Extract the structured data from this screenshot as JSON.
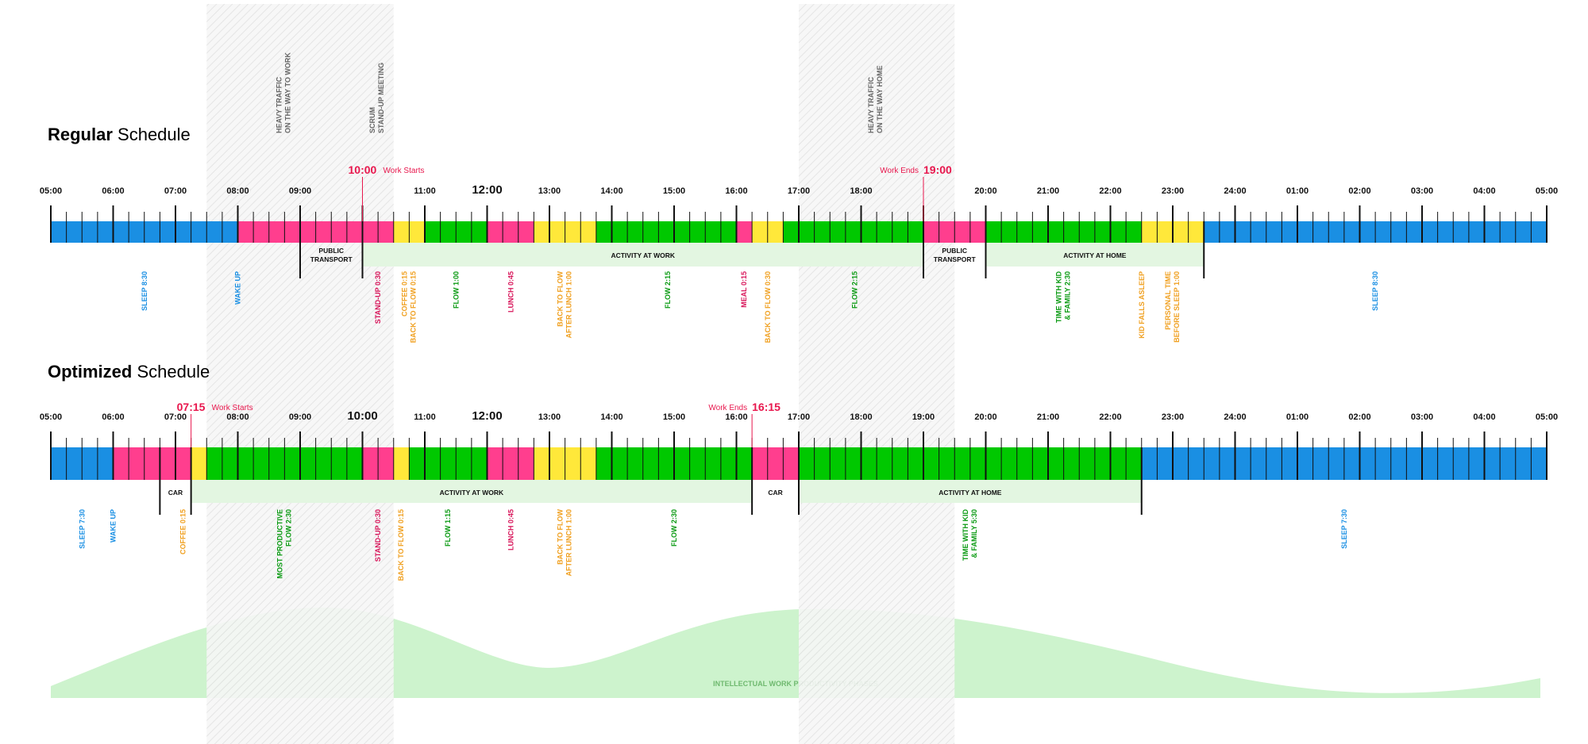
{
  "colors": {
    "sleep": "#1a8fe3",
    "routine": "#ff3e8e",
    "work": "#00c800",
    "transition": "#ffe83a",
    "activity_band": "#e3f6e1",
    "wave": "#cdf3cd",
    "accent_red": "#e8174d",
    "label_green": "#0a9a12",
    "label_orange": "#f0a020",
    "label_blue": "#1a8fe3",
    "label_red": "#d8155a"
  },
  "zones": [
    {
      "label_line1": "HEAVY TRAFFIC",
      "label_line2": "ON THE WAY TO WORK",
      "start": 7.5,
      "end": 10.0
    },
    {
      "label_line1": "SCRUM",
      "label_line2": "STAND-UP MEETING",
      "start": 10.0,
      "end": 10.5
    },
    {
      "label_line1": "HEAVY TRAFFIC",
      "label_line2": "ON THE WAY HOME",
      "start": 17.0,
      "end": 19.5
    }
  ],
  "regular": {
    "title_bold": "Regular",
    "title_rest": " Schedule",
    "hour_labels": [
      "05:00",
      "06:00",
      "07:00",
      "08:00",
      "09:00",
      "10:00",
      "11:00",
      "12:00",
      "13:00",
      "14:00",
      "15:00",
      "16:00",
      "17:00",
      "18:00",
      "19:00",
      "20:00",
      "21:00",
      "22:00",
      "23:00",
      "24:00",
      "01:00",
      "02:00",
      "03:00",
      "04:00",
      "05:00"
    ],
    "big_hours": [
      7
    ],
    "hidden_hours": [
      5,
      14
    ],
    "start_marker": {
      "time": "10:00",
      "text": "Work Starts",
      "at": 10.0
    },
    "end_marker": {
      "time": "19:00",
      "text": "Work Ends",
      "at": 19.0
    },
    "segments": [
      {
        "start": 5.0,
        "end": 8.0,
        "kind": "sleep"
      },
      {
        "start": 8.0,
        "end": 10.0,
        "kind": "routine"
      },
      {
        "start": 10.0,
        "end": 10.5,
        "kind": "routine"
      },
      {
        "start": 10.5,
        "end": 11.0,
        "kind": "transition"
      },
      {
        "start": 11.0,
        "end": 12.0,
        "kind": "work"
      },
      {
        "start": 12.0,
        "end": 12.75,
        "kind": "routine"
      },
      {
        "start": 12.75,
        "end": 13.75,
        "kind": "transition"
      },
      {
        "start": 13.75,
        "end": 16.0,
        "kind": "work"
      },
      {
        "start": 16.0,
        "end": 16.25,
        "kind": "routine"
      },
      {
        "start": 16.25,
        "end": 16.75,
        "kind": "transition"
      },
      {
        "start": 16.75,
        "end": 19.0,
        "kind": "work"
      },
      {
        "start": 19.0,
        "end": 20.0,
        "kind": "routine"
      },
      {
        "start": 20.0,
        "end": 22.5,
        "kind": "work"
      },
      {
        "start": 22.5,
        "end": 23.5,
        "kind": "transition"
      },
      {
        "start": 23.5,
        "end": 29.0,
        "kind": "sleep"
      }
    ],
    "bands": [
      {
        "start": 9.0,
        "end": 10.0,
        "label_line1": "PUBLIC",
        "label_line2": "TRANSPORT",
        "fill": false
      },
      {
        "start": 10.0,
        "end": 19.0,
        "label_line1": "ACTIVITY AT WORK",
        "label_line2": "",
        "fill": true
      },
      {
        "start": 19.0,
        "end": 20.0,
        "label_line1": "PUBLIC",
        "label_line2": "TRANSPORT",
        "fill": false
      },
      {
        "start": 20.0,
        "end": 23.5,
        "label_line1": "ACTIVITY AT HOME",
        "label_line2": "",
        "fill": true
      }
    ],
    "activities": [
      {
        "at": 6.5,
        "line1": "SLEEP 8:30",
        "line2": "",
        "color": "label_blue"
      },
      {
        "at": 8.0,
        "line1": "WAKE UP",
        "line2": "",
        "color": "label_blue"
      },
      {
        "at": 10.25,
        "line1": "STAND-UP 0:30",
        "line2": "",
        "color": "label_red"
      },
      {
        "at": 10.75,
        "line1": "COFFEE 0:15",
        "line2": "BACK TO FLOW 0:15",
        "color": "label_orange"
      },
      {
        "at": 11.5,
        "line1": "FLOW 1:00",
        "line2": "",
        "color": "label_green"
      },
      {
        "at": 12.38,
        "line1": "LUNCH 0:45",
        "line2": "",
        "color": "label_red"
      },
      {
        "at": 13.25,
        "line1": "BACK TO FLOW",
        "line2": "AFTER LUNCH 1:00",
        "color": "label_orange"
      },
      {
        "at": 14.9,
        "line1": "FLOW 2:15",
        "line2": "",
        "color": "label_green"
      },
      {
        "at": 16.12,
        "line1": "MEAL 0:15",
        "line2": "",
        "color": "label_red"
      },
      {
        "at": 16.5,
        "line1": "BACK TO FLOW 0:30",
        "line2": "",
        "color": "label_orange"
      },
      {
        "at": 17.9,
        "line1": "FLOW 2:15",
        "line2": "",
        "color": "label_green"
      },
      {
        "at": 21.25,
        "line1": "TIME WITH KID",
        "line2": "& FAMILY 2:30",
        "color": "label_green"
      },
      {
        "at": 22.5,
        "line1": "KID FALLS ASLEEP",
        "line2": "",
        "color": "label_orange"
      },
      {
        "at": 23.0,
        "line1": "PERSONAL TIME",
        "line2": "BEFORE SLEEP 1:00",
        "color": "label_orange"
      },
      {
        "at": 26.25,
        "line1": "SLEEP 8:30",
        "line2": "",
        "color": "label_blue"
      }
    ]
  },
  "optimized": {
    "title_bold": "Optimized",
    "title_rest": " Schedule",
    "hour_labels": [
      "05:00",
      "06:00",
      "07:00",
      "08:00",
      "09:00",
      "10:00",
      "11:00",
      "12:00",
      "13:00",
      "14:00",
      "15:00",
      "16:00",
      "17:00",
      "18:00",
      "19:00",
      "20:00",
      "21:00",
      "22:00",
      "23:00",
      "24:00",
      "01:00",
      "02:00",
      "03:00",
      "04:00",
      "05:00"
    ],
    "big_hours": [
      5,
      7
    ],
    "hidden_hours": [],
    "start_marker": {
      "time": "07:15",
      "text": "Work Starts",
      "at": 7.25
    },
    "end_marker": {
      "time": "16:15",
      "text": "Work Ends",
      "at": 16.25
    },
    "segments": [
      {
        "start": 5.0,
        "end": 6.0,
        "kind": "sleep"
      },
      {
        "start": 6.0,
        "end": 7.25,
        "kind": "routine"
      },
      {
        "start": 7.25,
        "end": 7.5,
        "kind": "transition"
      },
      {
        "start": 7.5,
        "end": 10.0,
        "kind": "work"
      },
      {
        "start": 10.0,
        "end": 10.5,
        "kind": "routine"
      },
      {
        "start": 10.5,
        "end": 10.75,
        "kind": "transition"
      },
      {
        "start": 10.75,
        "end": 12.0,
        "kind": "work"
      },
      {
        "start": 12.0,
        "end": 12.75,
        "kind": "routine"
      },
      {
        "start": 12.75,
        "end": 13.75,
        "kind": "transition"
      },
      {
        "start": 13.75,
        "end": 16.25,
        "kind": "work"
      },
      {
        "start": 16.25,
        "end": 17.0,
        "kind": "routine"
      },
      {
        "start": 17.0,
        "end": 22.5,
        "kind": "work"
      },
      {
        "start": 22.5,
        "end": 29.0,
        "kind": "sleep"
      }
    ],
    "bands": [
      {
        "start": 6.75,
        "end": 7.25,
        "label_line1": "CAR",
        "label_line2": "",
        "fill": false
      },
      {
        "start": 7.25,
        "end": 16.25,
        "label_line1": "ACTIVITY AT WORK",
        "label_line2": "",
        "fill": true
      },
      {
        "start": 16.25,
        "end": 17.0,
        "label_line1": "CAR",
        "label_line2": "",
        "fill": false
      },
      {
        "start": 17.0,
        "end": 22.5,
        "label_line1": "ACTIVITY AT HOME",
        "label_line2": "",
        "fill": true
      }
    ],
    "activities": [
      {
        "at": 5.5,
        "line1": "SLEEP 7:30",
        "line2": "",
        "color": "label_blue"
      },
      {
        "at": 6.0,
        "line1": "WAKE UP",
        "line2": "",
        "color": "label_blue"
      },
      {
        "at": 7.12,
        "line1": "COFFEE 0:15",
        "line2": "",
        "color": "label_orange"
      },
      {
        "at": 8.75,
        "line1": "MOST PRODUCTIVE",
        "line2": "FLOW 2:30",
        "color": "label_green"
      },
      {
        "at": 10.25,
        "line1": "STAND-UP 0:30",
        "line2": "",
        "color": "label_red"
      },
      {
        "at": 10.62,
        "line1": "BACK TO FLOW 0:15",
        "line2": "",
        "color": "label_orange"
      },
      {
        "at": 11.37,
        "line1": "FLOW 1:15",
        "line2": "",
        "color": "label_green"
      },
      {
        "at": 12.38,
        "line1": "LUNCH 0:45",
        "line2": "",
        "color": "label_red"
      },
      {
        "at": 13.25,
        "line1": "BACK TO FLOW",
        "line2": "AFTER LUNCH 1:00",
        "color": "label_orange"
      },
      {
        "at": 15.0,
        "line1": "FLOW 2:30",
        "line2": "",
        "color": "label_green"
      },
      {
        "at": 19.75,
        "line1": "TIME WITH KID",
        "line2": "& FAMILY 5:30",
        "color": "label_green"
      },
      {
        "at": 25.75,
        "line1": "SLEEP 7:30",
        "line2": "",
        "color": "label_blue"
      }
    ]
  },
  "wave": {
    "label": "INTELLECTUAL WORK PRODUCTIVITY PHASES"
  }
}
